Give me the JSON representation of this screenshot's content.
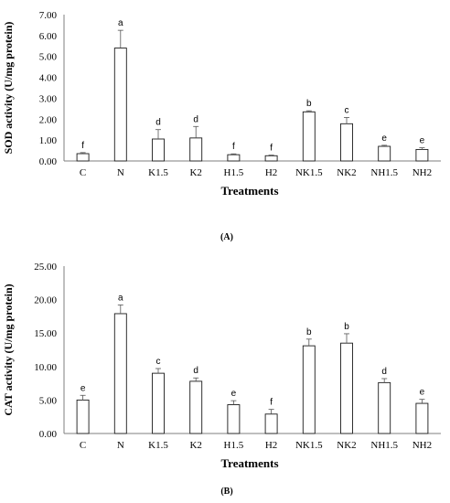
{
  "chart_data": [
    {
      "type": "bar",
      "panel_label": "(A)",
      "xlabel": "Treatments",
      "ylabel": "SOD activity (U/mg protein)",
      "ylim": [
        0,
        7
      ],
      "yticks": [
        "0.00",
        "1.00",
        "2.00",
        "3.00",
        "4.00",
        "5.00",
        "6.00",
        "7.00"
      ],
      "categories": [
        "C",
        "N",
        "K1.5",
        "K2",
        "H1.5",
        "H2",
        "NK1.5",
        "NK2",
        "NH1.5",
        "NH2"
      ],
      "values": [
        0.35,
        5.4,
        1.05,
        1.1,
        0.3,
        0.25,
        2.35,
        1.78,
        0.7,
        0.55
      ],
      "errors": [
        0.05,
        0.85,
        0.45,
        0.55,
        0.04,
        0.03,
        0.05,
        0.3,
        0.05,
        0.08
      ],
      "letters": [
        "f",
        "a",
        "d",
        "d",
        "f",
        "f",
        "b",
        "c",
        "e",
        "e"
      ]
    },
    {
      "type": "bar",
      "panel_label": "(B)",
      "xlabel": "Treatments",
      "ylabel": "CAT activity (U/mg protein)",
      "ylim": [
        0,
        25
      ],
      "yticks": [
        "0.00",
        "5.00",
        "10.00",
        "15.00",
        "20.00",
        "25.00"
      ],
      "categories": [
        "C",
        "N",
        "K1.5",
        "K2",
        "H1.5",
        "H2",
        "NK1.5",
        "NK2",
        "NH1.5",
        "NH2"
      ],
      "values": [
        5.0,
        17.9,
        9.0,
        7.8,
        4.3,
        2.9,
        13.1,
        13.5,
        7.6,
        4.5
      ],
      "errors": [
        0.7,
        1.3,
        0.7,
        0.5,
        0.6,
        0.7,
        1.0,
        1.4,
        0.6,
        0.6
      ],
      "letters": [
        "e",
        "a",
        "c",
        "d",
        "e",
        "f",
        "b",
        "b",
        "d",
        "e"
      ]
    }
  ]
}
